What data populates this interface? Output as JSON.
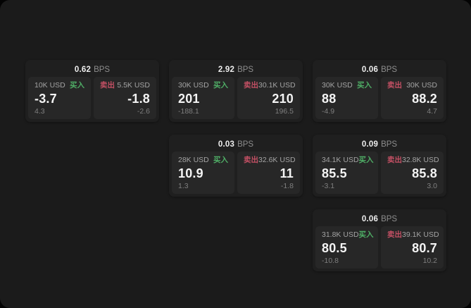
{
  "labels": {
    "bps_unit": "BPS",
    "buy": "买入",
    "sell": "卖出"
  },
  "colors": {
    "window_bg": "#1b1b1b",
    "card_bg": "#1f1f1f",
    "panel_bg": "#272727",
    "accent_green": "#4fae66",
    "accent_red": "#c35064"
  },
  "cards": [
    {
      "bps": "0.62",
      "col": 1,
      "row": 1,
      "buy_amount": "10K USD",
      "buy_value": "-3.7",
      "buy_sub": "4.3",
      "sell_amount": "5.5K USD",
      "sell_value": "-1.8",
      "sell_sub": "-2.6"
    },
    {
      "bps": "2.92",
      "col": 2,
      "row": 1,
      "buy_amount": "30K USD",
      "buy_value": "201",
      "buy_sub": "-188.1",
      "sell_amount": "30.1K USD",
      "sell_value": "210",
      "sell_sub": "196.5"
    },
    {
      "bps": "0.06",
      "col": 3,
      "row": 1,
      "buy_amount": "30K USD",
      "buy_value": "88",
      "buy_sub": "-4.9",
      "sell_amount": "30K USD",
      "sell_value": "88.2",
      "sell_sub": "4.7"
    },
    {
      "bps": "0.03",
      "col": 2,
      "row": 2,
      "buy_amount": "28K USD",
      "buy_value": "10.9",
      "buy_sub": "1.3",
      "sell_amount": "32.6K USD",
      "sell_value": "11",
      "sell_sub": "-1.8"
    },
    {
      "bps": "0.09",
      "col": 3,
      "row": 2,
      "buy_amount": "34.1K USD",
      "buy_value": "85.5",
      "buy_sub": "-3.1",
      "sell_amount": "32.8K USD",
      "sell_value": "85.8",
      "sell_sub": "3.0"
    },
    {
      "bps": "0.06",
      "col": 3,
      "row": 3,
      "buy_amount": "31.8K USD",
      "buy_value": "80.5",
      "buy_sub": "-10.8",
      "sell_amount": "39.1K USD",
      "sell_value": "80.7",
      "sell_sub": "10.2"
    }
  ]
}
